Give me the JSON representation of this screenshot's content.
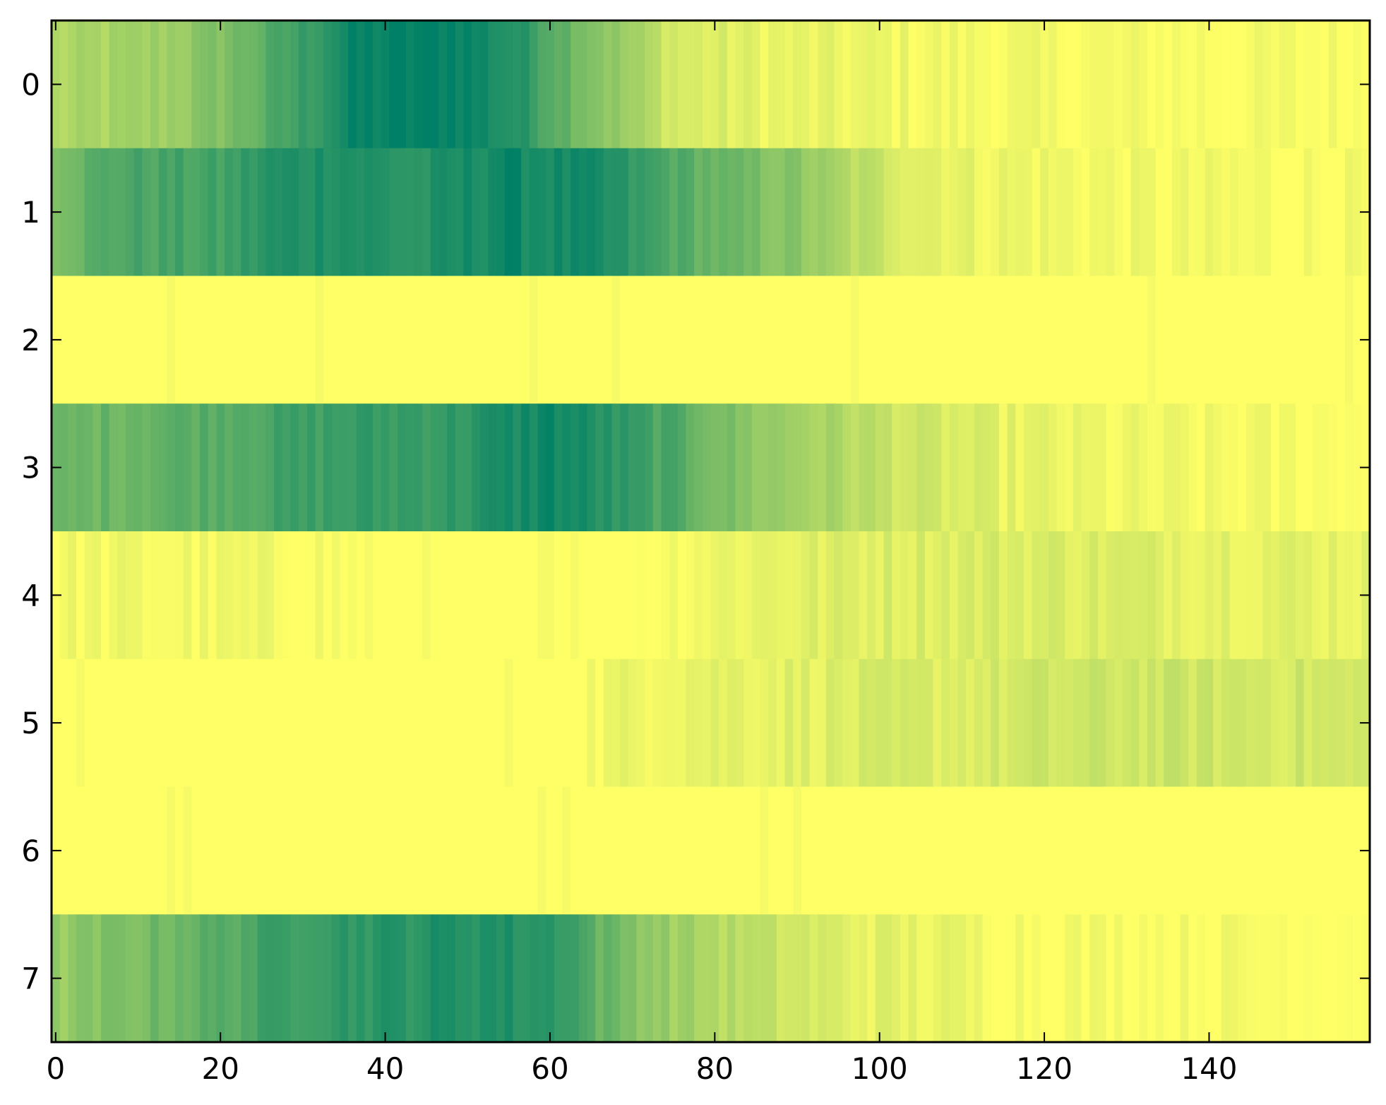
{
  "chart_data": {
    "type": "heatmap",
    "title": "",
    "xlabel": "",
    "ylabel": "",
    "rows": 8,
    "cols": 160,
    "colormap": "summer_r",
    "colors": {
      "low": "#ffff66",
      "high": "#008066",
      "axes": "#000000",
      "background": "#ffffff"
    },
    "xlim": [
      -0.5,
      159.5
    ],
    "ylim": [
      7.5,
      -0.5
    ],
    "x_ticks": [
      0,
      20,
      40,
      60,
      80,
      100,
      120,
      140
    ],
    "x_tick_labels": [
      "0",
      "20",
      "40",
      "60",
      "80",
      "100",
      "120",
      "140"
    ],
    "y_ticks": [
      0,
      1,
      2,
      3,
      4,
      5,
      6,
      7
    ],
    "y_tick_labels": [
      "0",
      "1",
      "2",
      "3",
      "4",
      "5",
      "6",
      "7"
    ],
    "row_profiles": [
      {
        "row": 0,
        "anchors": [
          [
            0,
            0.3
          ],
          [
            10,
            0.35
          ],
          [
            18,
            0.45
          ],
          [
            26,
            0.65
          ],
          [
            36,
            0.95
          ],
          [
            48,
            1.0
          ],
          [
            56,
            0.85
          ],
          [
            64,
            0.55
          ],
          [
            70,
            0.35
          ],
          [
            76,
            0.15
          ],
          [
            88,
            0.08
          ],
          [
            100,
            0.06
          ],
          [
            120,
            0.03
          ],
          [
            159,
            0.02
          ]
        ]
      },
      {
        "row": 1,
        "anchors": [
          [
            0,
            0.55
          ],
          [
            8,
            0.7
          ],
          [
            20,
            0.72
          ],
          [
            26,
            0.85
          ],
          [
            34,
            0.9
          ],
          [
            44,
            0.82
          ],
          [
            54,
            0.95
          ],
          [
            66,
            0.88
          ],
          [
            74,
            0.7
          ],
          [
            82,
            0.55
          ],
          [
            90,
            0.45
          ],
          [
            96,
            0.28
          ],
          [
            104,
            0.15
          ],
          [
            112,
            0.08
          ],
          [
            130,
            0.04
          ],
          [
            159,
            0.02
          ]
        ]
      },
      {
        "row": 2,
        "anchors": [
          [
            0,
            0.0
          ],
          [
            159,
            0.0
          ]
        ]
      },
      {
        "row": 3,
        "anchors": [
          [
            0,
            0.55
          ],
          [
            12,
            0.62
          ],
          [
            26,
            0.72
          ],
          [
            36,
            0.78
          ],
          [
            48,
            0.8
          ],
          [
            60,
            0.95
          ],
          [
            66,
            0.85
          ],
          [
            76,
            0.65
          ],
          [
            84,
            0.45
          ],
          [
            96,
            0.3
          ],
          [
            104,
            0.18
          ],
          [
            114,
            0.1
          ],
          [
            126,
            0.05
          ],
          [
            140,
            0.03
          ],
          [
            159,
            0.02
          ]
        ]
      },
      {
        "row": 4,
        "anchors": [
          [
            0,
            0.04
          ],
          [
            30,
            0.04
          ],
          [
            40,
            0.0
          ],
          [
            70,
            0.0
          ],
          [
            80,
            0.08
          ],
          [
            100,
            0.14
          ],
          [
            120,
            0.15
          ],
          [
            140,
            0.12
          ],
          [
            159,
            0.1
          ]
        ]
      },
      {
        "row": 5,
        "anchors": [
          [
            0,
            0.0
          ],
          [
            60,
            0.0
          ],
          [
            64,
            0.03
          ],
          [
            74,
            0.1
          ],
          [
            90,
            0.12
          ],
          [
            110,
            0.15
          ],
          [
            130,
            0.2
          ],
          [
            150,
            0.18
          ],
          [
            159,
            0.16
          ]
        ]
      },
      {
        "row": 6,
        "anchors": [
          [
            0,
            0.0
          ],
          [
            159,
            0.0
          ]
        ]
      },
      {
        "row": 7,
        "anchors": [
          [
            0,
            0.4
          ],
          [
            8,
            0.5
          ],
          [
            20,
            0.65
          ],
          [
            30,
            0.8
          ],
          [
            44,
            0.85
          ],
          [
            52,
            0.88
          ],
          [
            62,
            0.82
          ],
          [
            66,
            0.6
          ],
          [
            74,
            0.4
          ],
          [
            86,
            0.22
          ],
          [
            96,
            0.12
          ],
          [
            106,
            0.08
          ],
          [
            120,
            0.03
          ],
          [
            159,
            0.02
          ]
        ]
      }
    ]
  }
}
